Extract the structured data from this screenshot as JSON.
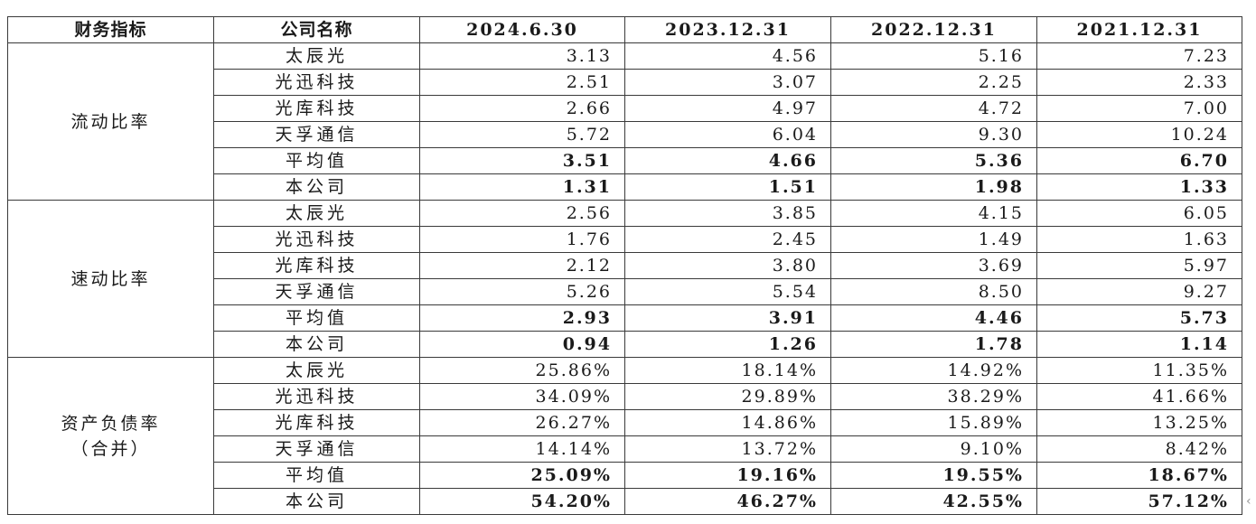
{
  "header": {
    "metric": "财务指标",
    "company": "公司名称",
    "dates": [
      "2024.6.30",
      "2023.12.31",
      "2022.12.31",
      "2021.12.31"
    ]
  },
  "groups": [
    {
      "metric_lines": [
        "流动比率"
      ],
      "rows": [
        {
          "company": "太辰光",
          "values": [
            "3.13",
            "4.56",
            "5.16",
            "7.23"
          ],
          "bold": false
        },
        {
          "company": "光迅科技",
          "values": [
            "2.51",
            "3.07",
            "2.25",
            "2.33"
          ],
          "bold": false
        },
        {
          "company": "光库科技",
          "values": [
            "2.66",
            "4.97",
            "4.72",
            "7.00"
          ],
          "bold": false
        },
        {
          "company": "天孚通信",
          "values": [
            "5.72",
            "6.04",
            "9.30",
            "10.24"
          ],
          "bold": false
        },
        {
          "company": "平均值",
          "values": [
            "3.51",
            "4.66",
            "5.36",
            "6.70"
          ],
          "bold": true
        },
        {
          "company": "本公司",
          "values": [
            "1.31",
            "1.51",
            "1.98",
            "1.33"
          ],
          "bold": true
        }
      ]
    },
    {
      "metric_lines": [
        "速动比率"
      ],
      "rows": [
        {
          "company": "太辰光",
          "values": [
            "2.56",
            "3.85",
            "4.15",
            "6.05"
          ],
          "bold": false
        },
        {
          "company": "光迅科技",
          "values": [
            "1.76",
            "2.45",
            "1.49",
            "1.63"
          ],
          "bold": false
        },
        {
          "company": "光库科技",
          "values": [
            "2.12",
            "3.80",
            "3.69",
            "5.97"
          ],
          "bold": false
        },
        {
          "company": "天孚通信",
          "values": [
            "5.26",
            "5.54",
            "8.50",
            "9.27"
          ],
          "bold": false
        },
        {
          "company": "平均值",
          "values": [
            "2.93",
            "3.91",
            "4.46",
            "5.73"
          ],
          "bold": true
        },
        {
          "company": "本公司",
          "values": [
            "0.94",
            "1.26",
            "1.78",
            "1.14"
          ],
          "bold": true
        }
      ]
    },
    {
      "metric_lines": [
        "资产负债率",
        "（合并）"
      ],
      "rows": [
        {
          "company": "太辰光",
          "values": [
            "25.86%",
            "18.14%",
            "14.92%",
            "11.35%"
          ],
          "bold": false
        },
        {
          "company": "光迅科技",
          "values": [
            "34.09%",
            "29.89%",
            "38.29%",
            "41.66%"
          ],
          "bold": false
        },
        {
          "company": "光库科技",
          "values": [
            "26.27%",
            "14.86%",
            "15.89%",
            "13.25%"
          ],
          "bold": false
        },
        {
          "company": "天孚通信",
          "values": [
            "14.14%",
            "13.72%",
            "9.10%",
            "8.42%"
          ],
          "bold": false
        },
        {
          "company": "平均值",
          "values": [
            "25.09%",
            "19.16%",
            "19.55%",
            "18.67%"
          ],
          "bold": true
        },
        {
          "company": "本公司",
          "values": [
            "54.20%",
            "46.27%",
            "42.55%",
            "57.12%"
          ],
          "bold": true
        }
      ]
    }
  ],
  "edge_mark": "‹"
}
